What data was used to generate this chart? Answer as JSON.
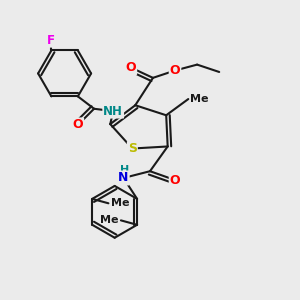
{
  "bg_color": "#ebebeb",
  "bond_color": "#1a1a1a",
  "bond_width": 1.5,
  "atom_colors": {
    "F": "#ee00ee",
    "O": "#ff0000",
    "N": "#0000dd",
    "S": "#bbbb00",
    "H": "#008888",
    "C": "#1a1a1a"
  },
  "figsize": [
    3.0,
    3.0
  ],
  "dpi": 100,
  "xlim": [
    0,
    10
  ],
  "ylim": [
    0,
    10
  ]
}
